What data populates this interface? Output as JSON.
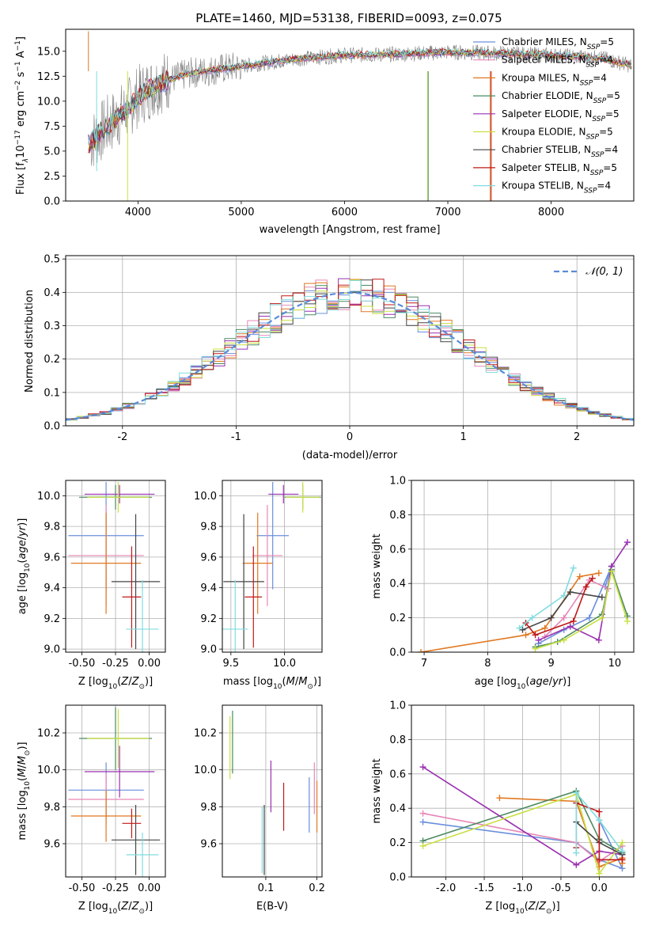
{
  "colors": {
    "Chabrier MILES": "#6a8fdc",
    "Salpeter MILES": "#e687b6",
    "Kroupa MILES": "#e07820",
    "Chabrier ELODIE": "#4a8a60",
    "Salpeter ELODIE": "#9a30b0",
    "Kroupa ELODIE": "#c8e040",
    "Chabrier STELIB": "#444444",
    "Salpeter STELIB": "#c01818",
    "Kroupa STELIB": "#80dce0",
    "data": "#808080",
    "normal": "#5b8bd9"
  },
  "chart_data": [
    {
      "id": "spectrum",
      "type": "line",
      "title": "PLATE=1460, MJD=53138, FIBERID=0093, z=0.075",
      "xlabel": "wavelength [Angstrom, rest frame]",
      "ylabel": "Flux [f",
      "ylabel_parts": [
        "λ",
        "10",
        "−17",
        " erg cm",
        "−2",
        " s",
        "−1",
        " A",
        "−1",
        "]"
      ],
      "xlim": [
        3300,
        8800
      ],
      "ylim": [
        0,
        17.2
      ],
      "xticks": [
        4000,
        5000,
        6000,
        7000,
        8000
      ],
      "yticks": [
        0.0,
        2.5,
        5.0,
        7.5,
        10.0,
        12.5,
        15.0
      ],
      "continuum": [
        [
          3500,
          5.5
        ],
        [
          3700,
          7.5
        ],
        [
          3900,
          9.2
        ],
        [
          4000,
          10.5
        ],
        [
          4200,
          11.8
        ],
        [
          4500,
          12.8
        ],
        [
          5000,
          13.5
        ],
        [
          5500,
          14.2
        ],
        [
          6000,
          14.6
        ],
        [
          6500,
          14.7
        ],
        [
          7000,
          14.9
        ],
        [
          7500,
          14.8
        ],
        [
          8000,
          14.6
        ],
        [
          8500,
          14.3
        ],
        [
          8800,
          13.5
        ]
      ],
      "legend": [
        {
          "series": "Chabrier MILES",
          "label": "Chabrier MILES, N",
          "sub": "SSP",
          "tail": "=5"
        },
        {
          "series": "Salpeter MILES",
          "label": "Salpeter MILES, N",
          "sub": "SSP",
          "tail": "=4"
        },
        {
          "series": "Kroupa MILES",
          "label": "Kroupa MILES, N",
          "sub": "SSP",
          "tail": "=4"
        },
        {
          "series": "Chabrier ELODIE",
          "label": "Chabrier ELODIE, N",
          "sub": "SSP",
          "tail": "=5"
        },
        {
          "series": "Salpeter ELODIE",
          "label": "Salpeter ELODIE, N",
          "sub": "SSP",
          "tail": "=5"
        },
        {
          "series": "Kroupa ELODIE",
          "label": "Kroupa ELODIE, N",
          "sub": "SSP",
          "tail": "=5"
        },
        {
          "series": "Chabrier STELIB",
          "label": "Chabrier STELIB, N",
          "sub": "SSP",
          "tail": "=4"
        },
        {
          "series": "Salpeter STELIB",
          "label": "Salpeter STELIB, N",
          "sub": "SSP",
          "tail": "=5"
        },
        {
          "series": "Kroupa STELIB",
          "label": "Kroupa STELIB, N",
          "sub": "SSP",
          "tail": "=4"
        }
      ]
    },
    {
      "id": "residuals",
      "type": "line",
      "xlabel": "(data-model)/error",
      "ylabel": "Normed distribution",
      "xlim": [
        -2.5,
        2.5
      ],
      "ylim": [
        0,
        0.51
      ],
      "xticks": [
        -2,
        -1,
        0,
        1,
        2
      ],
      "yticks": [
        0.0,
        0.1,
        0.2,
        0.3,
        0.4,
        0.5
      ],
      "legend": "N(0,1)",
      "legend_label": "𝒩(0, 1)",
      "bin_width": 0.1
    },
    {
      "id": "age-vs-Z",
      "type": "scatter",
      "xlabel": "Z [log10(Z/Z⊙)]",
      "ylabel": "age  [log10(age/yr)]",
      "xlim": [
        -0.62,
        0.12
      ],
      "ylim": [
        8.98,
        10.1
      ],
      "xticks": [
        -0.5,
        -0.25,
        0.0
      ],
      "yticks": [
        9.0,
        9.2,
        9.4,
        9.6,
        9.8,
        10.0
      ],
      "points": [
        {
          "series": "Chabrier MILES",
          "x": -0.32,
          "xerr": 0.28,
          "y": 9.74,
          "yerr": 0.35
        },
        {
          "series": "Salpeter MILES",
          "x": -0.32,
          "xerr": 0.28,
          "y": 9.61,
          "yerr": 0.33
        },
        {
          "series": "Kroupa MILES",
          "x": -0.32,
          "xerr": 0.26,
          "y": 9.56,
          "yerr": 0.33
        },
        {
          "series": "Chabrier ELODIE",
          "x": -0.25,
          "xerr": 0.27,
          "y": 9.99,
          "yerr": 0.08
        },
        {
          "series": "Salpeter ELODIE",
          "x": -0.22,
          "xerr": 0.26,
          "y": 10.01,
          "yerr": 0.06
        },
        {
          "series": "Kroupa ELODIE",
          "x": -0.23,
          "xerr": 0.23,
          "y": 9.99,
          "yerr": 0.1
        },
        {
          "series": "Chabrier STELIB",
          "x": -0.1,
          "xerr": 0.18,
          "y": 9.44,
          "yerr": 0.44
        },
        {
          "series": "Salpeter STELIB",
          "x": -0.13,
          "xerr": 0.07,
          "y": 9.34,
          "yerr": 0.33
        },
        {
          "series": "Kroupa STELIB",
          "x": -0.05,
          "xerr": 0.12,
          "y": 9.13,
          "yerr": 0.32
        }
      ]
    },
    {
      "id": "age-vs-mass",
      "type": "scatter",
      "xlabel": "mass [log10(M/M⊙)]",
      "xlim": [
        9.42,
        10.35
      ],
      "ylim": [
        8.98,
        10.1
      ],
      "xticks": [
        9.5,
        10.0
      ],
      "yticks": [
        9.0,
        9.2,
        9.4,
        9.6,
        9.8,
        10.0
      ],
      "points": [
        {
          "series": "Chabrier MILES",
          "x": 9.89,
          "xerr": 0.15,
          "y": 9.74,
          "yerr": 0.35
        },
        {
          "series": "Salpeter MILES",
          "x": 9.84,
          "xerr": 0.14,
          "y": 9.61,
          "yerr": 0.33
        },
        {
          "series": "Kroupa MILES",
          "x": 9.75,
          "xerr": 0.14,
          "y": 9.56,
          "yerr": 0.33
        },
        {
          "series": "Chabrier ELODIE",
          "x": 10.17,
          "xerr": 0.17,
          "y": 9.99,
          "yerr": 0.08
        },
        {
          "series": "Salpeter ELODIE",
          "x": 9.99,
          "xerr": 0.14,
          "y": 10.01,
          "yerr": 0.06
        },
        {
          "series": "Kroupa ELODIE",
          "x": 10.17,
          "xerr": 0.16,
          "y": 9.99,
          "yerr": 0.1
        },
        {
          "series": "Chabrier STELIB",
          "x": 9.62,
          "xerr": 0.19,
          "y": 9.44,
          "yerr": 0.44
        },
        {
          "series": "Salpeter STELIB",
          "x": 9.71,
          "xerr": 0.08,
          "y": 9.34,
          "yerr": 0.33
        },
        {
          "series": "Kroupa STELIB",
          "x": 9.54,
          "xerr": 0.12,
          "y": 9.13,
          "yerr": 0.32
        }
      ]
    },
    {
      "id": "mass-vs-Z",
      "type": "scatter",
      "xlabel": "Z [log10(Z/Z⊙)]",
      "ylabel": "mass [log10(M/M⊙)]",
      "xlim": [
        -0.62,
        0.12
      ],
      "ylim": [
        9.42,
        10.35
      ],
      "xticks": [
        -0.5,
        -0.25,
        0.0
      ],
      "yticks": [
        9.6,
        9.8,
        10.0,
        10.2
      ],
      "points": [
        {
          "series": "Chabrier MILES",
          "x": -0.32,
          "xerr": 0.28,
          "y": 9.89,
          "yerr": 0.15
        },
        {
          "series": "Salpeter MILES",
          "x": -0.32,
          "xerr": 0.28,
          "y": 9.84,
          "yerr": 0.14
        },
        {
          "series": "Kroupa MILES",
          "x": -0.32,
          "xerr": 0.26,
          "y": 9.75,
          "yerr": 0.14
        },
        {
          "series": "Chabrier ELODIE",
          "x": -0.25,
          "xerr": 0.27,
          "y": 10.17,
          "yerr": 0.17
        },
        {
          "series": "Salpeter ELODIE",
          "x": -0.22,
          "xerr": 0.26,
          "y": 9.99,
          "yerr": 0.14
        },
        {
          "series": "Kroupa ELODIE",
          "x": -0.23,
          "xerr": 0.23,
          "y": 10.17,
          "yerr": 0.16
        },
        {
          "series": "Chabrier STELIB",
          "x": -0.1,
          "xerr": 0.18,
          "y": 9.62,
          "yerr": 0.19
        },
        {
          "series": "Salpeter STELIB",
          "x": -0.13,
          "xerr": 0.07,
          "y": 9.71,
          "yerr": 0.08
        },
        {
          "series": "Kroupa STELIB",
          "x": -0.05,
          "xerr": 0.12,
          "y": 9.54,
          "yerr": 0.12
        }
      ]
    },
    {
      "id": "mass-vs-EBV",
      "type": "scatter",
      "xlabel": "E(B-V)",
      "xlim": [
        0.015,
        0.21
      ],
      "ylim": [
        9.42,
        10.35
      ],
      "xticks": [
        0.1,
        0.2
      ],
      "yticks": [
        9.6,
        9.8,
        10.0,
        10.2
      ],
      "points": [
        {
          "series": "Chabrier MILES",
          "x": 0.185,
          "y": 9.81,
          "yerr": 0.15
        },
        {
          "series": "Salpeter MILES",
          "x": 0.195,
          "y": 9.9,
          "yerr": 0.14
        },
        {
          "series": "Kroupa MILES",
          "x": 0.2,
          "y": 9.8,
          "yerr": 0.14
        },
        {
          "series": "Chabrier ELODIE",
          "x": 0.035,
          "y": 10.15,
          "yerr": 0.17
        },
        {
          "series": "Salpeter ELODIE",
          "x": 0.11,
          "y": 9.91,
          "yerr": 0.14
        },
        {
          "series": "Kroupa ELODIE",
          "x": 0.03,
          "y": 10.12,
          "yerr": 0.17
        },
        {
          "series": "Chabrier STELIB",
          "x": 0.097,
          "y": 9.62,
          "yerr": 0.19
        },
        {
          "series": "Salpeter STELIB",
          "x": 0.135,
          "y": 9.8,
          "yerr": 0.13
        },
        {
          "series": "Kroupa STELIB",
          "x": 0.093,
          "y": 9.62,
          "yerr": 0.18
        }
      ]
    },
    {
      "id": "weight-vs-age",
      "type": "line",
      "xlabel": "age  [log10(age/yr)]",
      "ylabel": "mass weight",
      "xlim": [
        6.8,
        10.3
      ],
      "ylim": [
        0,
        1
      ],
      "xticks": [
        7,
        8,
        9,
        10
      ],
      "yticks": [
        0.0,
        0.2,
        0.4,
        0.6,
        0.8,
        1.0
      ],
      "series": [
        {
          "name": "Chabrier MILES",
          "points": [
            [
              8.8,
              0.05
            ],
            [
              9.2,
              0.13
            ],
            [
              9.6,
              0.2
            ],
            [
              9.95,
              0.5
            ],
            [
              9.85,
              0.38
            ]
          ]
        },
        {
          "name": "Salpeter MILES",
          "points": [
            [
              8.9,
              0.09
            ],
            [
              9.2,
              0.2
            ],
            [
              9.6,
              0.42
            ],
            [
              9.9,
              0.37
            ]
          ]
        },
        {
          "name": "Kroupa MILES",
          "points": [
            [
              6.95,
              0.0
            ],
            [
              8.6,
              0.1
            ],
            [
              8.9,
              0.14
            ],
            [
              9.45,
              0.44
            ],
            [
              9.75,
              0.46
            ]
          ]
        },
        {
          "name": "Chabrier ELODIE",
          "points": [
            [
              8.75,
              0.03
            ],
            [
              9.1,
              0.06
            ],
            [
              9.8,
              0.22
            ],
            [
              9.95,
              0.48
            ],
            [
              10.2,
              0.21
            ]
          ]
        },
        {
          "name": "Salpeter ELODIE",
          "points": [
            [
              8.8,
              0.07
            ],
            [
              9.3,
              0.15
            ],
            [
              9.75,
              0.07
            ],
            [
              9.95,
              0.5
            ],
            [
              10.2,
              0.64
            ]
          ]
        },
        {
          "name": "Kroupa ELODIE",
          "points": [
            [
              8.75,
              0.02
            ],
            [
              9.2,
              0.07
            ],
            [
              9.8,
              0.2
            ],
            [
              9.95,
              0.47
            ],
            [
              10.2,
              0.18
            ]
          ]
        },
        {
          "name": "Chabrier STELIB",
          "points": [
            [
              8.55,
              0.13
            ],
            [
              9.0,
              0.2
            ],
            [
              9.3,
              0.35
            ],
            [
              9.8,
              0.32
            ]
          ]
        },
        {
          "name": "Salpeter STELIB",
          "points": [
            [
              8.6,
              0.17
            ],
            [
              8.75,
              0.1
            ],
            [
              9.35,
              0.18
            ],
            [
              9.55,
              0.38
            ],
            [
              9.65,
              0.43
            ]
          ]
        },
        {
          "name": "Kroupa STELIB",
          "points": [
            [
              8.5,
              0.14
            ],
            [
              8.7,
              0.2
            ],
            [
              9.2,
              0.33
            ],
            [
              9.35,
              0.49
            ]
          ]
        }
      ]
    },
    {
      "id": "weight-vs-Z",
      "type": "line",
      "xlabel": "Z [log10(Z/Z⊙)]",
      "ylabel": "mass weight",
      "xlim": [
        -2.45,
        0.45
      ],
      "ylim": [
        0,
        1
      ],
      "xticks": [
        -2.0,
        -1.5,
        -1.0,
        -0.5,
        0.0
      ],
      "yticks": [
        0.0,
        0.2,
        0.4,
        0.6,
        0.8,
        1.0
      ],
      "series": [
        {
          "name": "Chabrier MILES",
          "points": [
            [
              -2.3,
              0.32
            ],
            [
              -0.3,
              0.2
            ],
            [
              0.0,
              0.1
            ],
            [
              0.3,
              0.05
            ],
            [
              0.0,
              0.33
            ]
          ]
        },
        {
          "name": "Salpeter MILES",
          "points": [
            [
              -2.3,
              0.37
            ],
            [
              -0.3,
              0.2
            ],
            [
              0.0,
              0.09
            ],
            [
              0.3,
              0.18
            ],
            [
              0.3,
              0.1
            ]
          ]
        },
        {
          "name": "Kroupa MILES",
          "points": [
            [
              -1.3,
              0.46
            ],
            [
              -0.3,
              0.44
            ],
            [
              0.0,
              0.06
            ],
            [
              0.3,
              0.11
            ],
            [
              0.3,
              0.08
            ]
          ]
        },
        {
          "name": "Chabrier ELODIE",
          "points": [
            [
              -2.3,
              0.21
            ],
            [
              -0.3,
              0.5
            ],
            [
              0.0,
              0.22
            ],
            [
              0.3,
              0.14
            ]
          ]
        },
        {
          "name": "Salpeter ELODIE",
          "points": [
            [
              -2.3,
              0.64
            ],
            [
              -0.3,
              0.07
            ],
            [
              0.0,
              0.15
            ],
            [
              0.3,
              0.13
            ]
          ]
        },
        {
          "name": "Kroupa ELODIE",
          "points": [
            [
              -2.3,
              0.18
            ],
            [
              -0.3,
              0.48
            ],
            [
              0.0,
              0.02
            ],
            [
              0.3,
              0.2
            ]
          ]
        },
        {
          "name": "Chabrier STELIB",
          "points": [
            [
              -0.3,
              0.32
            ],
            [
              0.0,
              0.2
            ],
            [
              0.3,
              0.13
            ]
          ]
        },
        {
          "name": "Salpeter STELIB",
          "points": [
            [
              -0.3,
              0.17
            ],
            [
              -0.3,
              0.43
            ],
            [
              0.0,
              0.38
            ],
            [
              0.0,
              0.1
            ],
            [
              0.3,
              0.1
            ]
          ]
        },
        {
          "name": "Kroupa STELIB",
          "points": [
            [
              -0.3,
              0.14
            ],
            [
              -0.3,
              0.49
            ],
            [
              0.0,
              0.33
            ],
            [
              0.3,
              0.15
            ]
          ]
        }
      ]
    }
  ]
}
